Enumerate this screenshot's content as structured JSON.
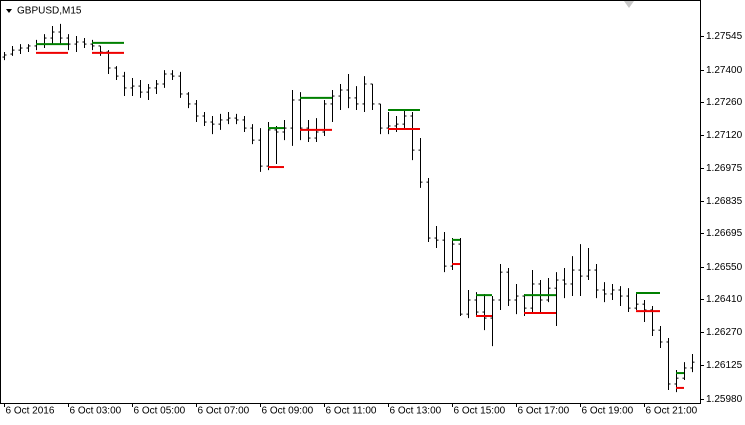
{
  "chart_data": {
    "type": "ohlc",
    "title": "GBPUSD,M15",
    "color": "#000000",
    "open": [
      1.27454,
      1.27467,
      1.27484,
      1.27493,
      1.27502,
      1.2751,
      1.27536,
      1.27562,
      1.27536,
      1.2751,
      1.27519,
      1.2751,
      1.27502,
      1.27476,
      1.27407,
      1.27372,
      1.27321,
      1.27329,
      1.27303,
      1.27321,
      1.27338,
      1.27381,
      1.27372,
      1.27295,
      1.27252,
      1.272,
      1.27174,
      1.27165,
      1.27183,
      1.27191,
      1.27183,
      1.27148,
      1.27096,
      1.26984,
      1.2714,
      1.27131,
      1.27148,
      1.27269,
      1.27148,
      1.27105,
      1.27131,
      1.27252,
      1.27286,
      1.27312,
      1.27278,
      1.27252,
      1.27338,
      1.27252,
      1.27148,
      1.27157,
      1.27165,
      1.272,
      1.27053,
      1.26915,
      1.26674,
      1.26665,
      1.26553,
      1.26648,
      1.26346,
      1.26407,
      1.26355,
      1.26329,
      1.26407,
      1.26527,
      1.26407,
      1.26424,
      1.26372,
      1.26476,
      1.26407,
      1.26458,
      1.26493,
      1.26476,
      1.26536,
      1.2651,
      1.26536,
      1.2645,
      1.26433,
      1.2645,
      1.26424,
      1.26372,
      1.26389,
      1.26364,
      1.26277,
      1.26226,
      1.26045,
      1.2607,
      1.26114
    ],
    "high": [
      1.27476,
      1.27502,
      1.2751,
      1.2751,
      1.27528,
      1.27553,
      1.27588,
      1.27597,
      1.27553,
      1.27545,
      1.27536,
      1.27528,
      1.27502,
      1.27484,
      1.27415,
      1.2739,
      1.27364,
      1.27355,
      1.27338,
      1.27355,
      1.27398,
      1.27398,
      1.2739,
      1.27303,
      1.27269,
      1.27217,
      1.272,
      1.27209,
      1.27217,
      1.27209,
      1.272,
      1.27165,
      1.27148,
      1.27174,
      1.27157,
      1.27183,
      1.27312,
      1.27303,
      1.27183,
      1.27191,
      1.27269,
      1.27312,
      1.27338,
      1.27381,
      1.27329,
      1.27372,
      1.27338,
      1.27252,
      1.27217,
      1.272,
      1.27226,
      1.27217,
      1.27105,
      1.26933,
      1.26726,
      1.267,
      1.26674,
      1.26674,
      1.2645,
      1.26441,
      1.26433,
      1.26424,
      1.26562,
      1.26545,
      1.26476,
      1.26433,
      1.26536,
      1.26493,
      1.26502,
      1.26527,
      1.26545,
      1.26596,
      1.26648,
      1.26631,
      1.26562,
      1.26484,
      1.26476,
      1.26467,
      1.26458,
      1.26441,
      1.26407,
      1.26381,
      1.26295,
      1.26243,
      1.26105,
      1.26139,
      1.26174
    ],
    "low": [
      1.27441,
      1.27459,
      1.27467,
      1.27476,
      1.27484,
      1.27493,
      1.2751,
      1.2751,
      1.27484,
      1.27476,
      1.27493,
      1.27484,
      1.27459,
      1.27381,
      1.27355,
      1.27286,
      1.27286,
      1.27278,
      1.27269,
      1.27295,
      1.27321,
      1.27355,
      1.27278,
      1.27234,
      1.27174,
      1.27157,
      1.27122,
      1.2714,
      1.27165,
      1.27165,
      1.27131,
      1.27079,
      1.26959,
      1.26967,
      1.26993,
      1.27096,
      1.27071,
      1.27096,
      1.27088,
      1.27088,
      1.27114,
      1.27174,
      1.27226,
      1.27234,
      1.27226,
      1.27217,
      1.27226,
      1.27122,
      1.27122,
      1.27131,
      1.2714,
      1.2701,
      1.2689,
      1.26657,
      1.26631,
      1.26527,
      1.26536,
      1.26338,
      1.26329,
      1.26338,
      1.26277,
      1.26208,
      1.26364,
      1.26381,
      1.26346,
      1.26338,
      1.26355,
      1.26355,
      1.26398,
      1.26295,
      1.26415,
      1.26424,
      1.26424,
      1.26493,
      1.26415,
      1.26398,
      1.26407,
      1.26381,
      1.26355,
      1.26364,
      1.26312,
      1.26252,
      1.262,
      1.26019,
      1.2601,
      1.26062,
      1.26096
    ],
    "close": [
      1.27463,
      1.27484,
      1.27493,
      1.27502,
      1.2751,
      1.27536,
      1.27562,
      1.27536,
      1.2751,
      1.27519,
      1.2751,
      1.27502,
      1.27476,
      1.27407,
      1.27372,
      1.27321,
      1.27329,
      1.27303,
      1.27321,
      1.27338,
      1.27381,
      1.27372,
      1.27295,
      1.27252,
      1.272,
      1.27174,
      1.27165,
      1.27183,
      1.27191,
      1.27183,
      1.27148,
      1.27096,
      1.26984,
      1.2714,
      1.27131,
      1.27148,
      1.27269,
      1.27148,
      1.27105,
      1.27131,
      1.27252,
      1.27286,
      1.27312,
      1.27278,
      1.27252,
      1.27338,
      1.27252,
      1.27148,
      1.27157,
      1.27165,
      1.272,
      1.27053,
      1.26915,
      1.26674,
      1.26665,
      1.26553,
      1.26648,
      1.26346,
      1.26407,
      1.26355,
      1.26329,
      1.26407,
      1.26527,
      1.26407,
      1.26424,
      1.26372,
      1.26476,
      1.26407,
      1.26458,
      1.26493,
      1.26476,
      1.26536,
      1.2651,
      1.26536,
      1.2645,
      1.26433,
      1.2645,
      1.26424,
      1.26372,
      1.26389,
      1.26364,
      1.26277,
      1.26226,
      1.26045,
      1.2607,
      1.26114,
      1.26139
    ],
    "levels": [
      {
        "color": "#008000",
        "segments": [
          {
            "start": 4,
            "end": 8,
            "value": 1.2751
          },
          {
            "start": 11,
            "end": 15,
            "value": 1.27515
          },
          {
            "start": 33,
            "end": 35,
            "value": 1.27148
          },
          {
            "start": 37,
            "end": 41,
            "value": 1.27278
          },
          {
            "start": 48,
            "end": 52,
            "value": 1.27226
          },
          {
            "start": 56,
            "end": 57,
            "value": 1.26666
          },
          {
            "start": 59,
            "end": 61,
            "value": 1.26428
          },
          {
            "start": 65,
            "end": 69,
            "value": 1.26428
          },
          {
            "start": 79,
            "end": 82,
            "value": 1.26437
          },
          {
            "start": 84,
            "end": 85,
            "value": 1.26092
          }
        ]
      },
      {
        "color": "#ee0000",
        "segments": [
          {
            "start": 4,
            "end": 8,
            "value": 1.27472
          },
          {
            "start": 11,
            "end": 15,
            "value": 1.27472
          },
          {
            "start": 33,
            "end": 35,
            "value": 1.2698
          },
          {
            "start": 37,
            "end": 41,
            "value": 1.2714
          },
          {
            "start": 48,
            "end": 52,
            "value": 1.27144
          },
          {
            "start": 56,
            "end": 57,
            "value": 1.26562
          },
          {
            "start": 59,
            "end": 61,
            "value": 1.26338
          },
          {
            "start": 65,
            "end": 69,
            "value": 1.26351
          },
          {
            "start": 79,
            "end": 82,
            "value": 1.26359
          },
          {
            "start": 84,
            "end": 85,
            "value": 1.26028
          }
        ]
      }
    ],
    "xlim": [
      -0.5,
      87
    ],
    "xticks": [
      {
        "value": 0,
        "label": "6 Oct 2016"
      },
      {
        "value": 8,
        "label": "6 Oct 03:00"
      },
      {
        "value": 16,
        "label": "6 Oct 05:00"
      },
      {
        "value": 24,
        "label": "6 Oct 07:00"
      },
      {
        "value": 32,
        "label": "6 Oct 09:00"
      },
      {
        "value": 40,
        "label": "6 Oct 11:00"
      },
      {
        "value": 48,
        "label": "6 Oct 13:00"
      },
      {
        "value": 56,
        "label": "6 Oct 15:00"
      },
      {
        "value": 64,
        "label": "6 Oct 17:00"
      },
      {
        "value": 72,
        "label": "6 Oct 19:00"
      },
      {
        "value": 80,
        "label": "6 Oct 21:00"
      }
    ],
    "ylim": [
      1.25963,
      1.277
    ],
    "yticks": [
      1.27545,
      {
        "value": 1.274,
        "label": "1.27400"
      },
      {
        "value": 1.2726,
        "label": "1.27260"
      },
      {
        "value": 1.2712,
        "label": "1.27120"
      },
      1.26975,
      1.26835,
      1.26695,
      {
        "value": 1.2655,
        "label": "1.26550"
      },
      {
        "value": 1.2641,
        "label": "1.26410"
      },
      {
        "value": 1.2627,
        "label": "1.26270"
      },
      1.26125,
      {
        "value": 1.2598,
        "label": "1.25980"
      }
    ]
  }
}
